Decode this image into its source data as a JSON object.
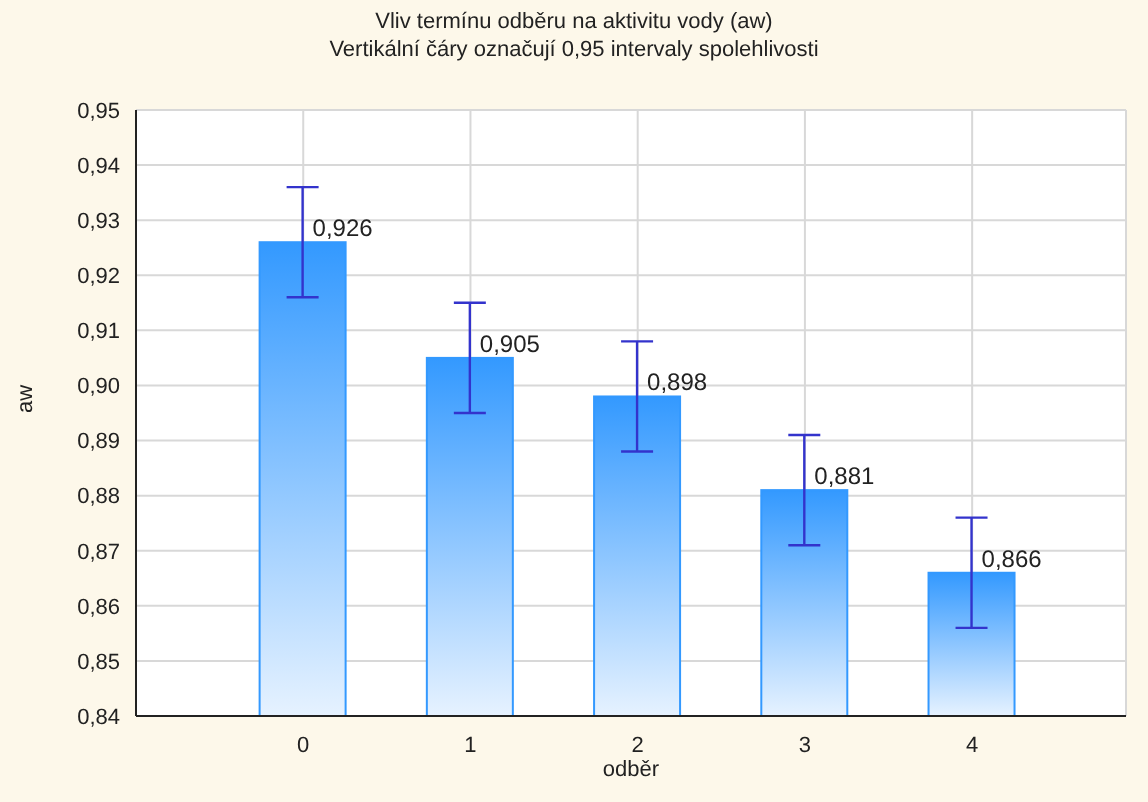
{
  "chart_data": {
    "type": "bar",
    "title": "Vliv termínu odběru na aktivitu vody (aw)",
    "subtitle": "Vertikální čáry označují 0,95 intervaly spolehlivosti",
    "xlabel": "odběr",
    "ylabel": "aw",
    "x": [
      0,
      1,
      2,
      3,
      4
    ],
    "xlim": [
      -1,
      4.92
    ],
    "xticks": [
      0,
      1,
      2,
      3,
      4
    ],
    "values": [
      0.926,
      0.905,
      0.898,
      0.881,
      0.866
    ],
    "value_labels": [
      "0,926",
      "0,905",
      "0,898",
      "0,881",
      "0,866"
    ],
    "errors": [
      0.01,
      0.01,
      0.01,
      0.01,
      0.01
    ],
    "color": "#3399ff",
    "grid": true,
    "legend": false,
    "ylim": [
      0.84,
      0.95
    ],
    "yticks": [
      {
        "value": 0.84,
        "label": "0,84"
      },
      {
        "value": 0.85,
        "label": "0,85"
      },
      {
        "value": 0.86,
        "label": "0,86"
      },
      {
        "value": 0.87,
        "label": "0,87"
      },
      {
        "value": 0.88,
        "label": "0,88"
      },
      {
        "value": 0.89,
        "label": "0,89"
      },
      {
        "value": 0.9,
        "label": "0,90"
      },
      {
        "value": 0.91,
        "label": "0,91"
      },
      {
        "value": 0.92,
        "label": "0,92"
      },
      {
        "value": 0.93,
        "label": "0,93"
      },
      {
        "value": 0.94,
        "label": "0,94"
      },
      {
        "value": 0.95,
        "label": "0,95"
      }
    ]
  }
}
